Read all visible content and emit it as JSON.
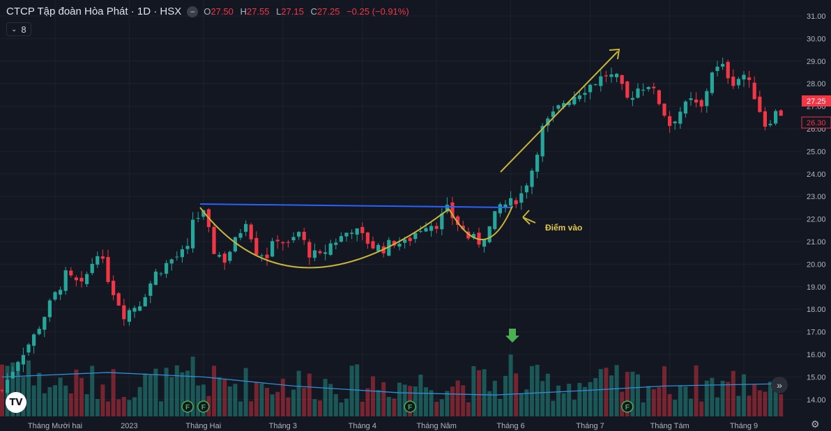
{
  "header": {
    "symbol": "CTCP Tập đoàn Hòa Phát · 1D · HSX",
    "minimize_icon": "minus-circle-icon",
    "ohlc": {
      "o_label": "O",
      "o": "27.50",
      "h_label": "H",
      "h": "27.55",
      "l_label": "L",
      "l": "27.15",
      "c_label": "C",
      "c": "27.25",
      "change": "−0.25 (−0.91%)"
    }
  },
  "indicator_badge": {
    "count": "8",
    "icon": "chevron-down-icon"
  },
  "logo": {
    "text": "TV",
    "icon": "tradingview-logo-icon"
  },
  "scroll_button_icon": "double-chevron-right-icon",
  "settings_icon": "gear-icon",
  "colors": {
    "up": "#26a69a",
    "down": "#f23645",
    "background": "#131722",
    "pattern": "#c8b43a",
    "resistance": "#2962ff",
    "ma": "#2f8fd8"
  },
  "chart_data": {
    "type": "candlestick",
    "y_axis": {
      "ticks": [
        "14.00",
        "15.00",
        "16.00",
        "17.00",
        "18.00",
        "19.00",
        "20.00",
        "21.00",
        "22.00",
        "23.00",
        "24.00",
        "25.00",
        "26.00",
        "27.00",
        "28.00",
        "29.00",
        "30.00",
        "31.00"
      ],
      "range": [
        13.4,
        31.4
      ]
    },
    "x_axis": {
      "ticks": [
        "Tháng Mười hai",
        "2023",
        "Tháng Hai",
        "Tháng 3",
        "Tháng 4",
        "Tháng Năm",
        "Tháng 6",
        "Tháng 7",
        "Tháng Tám",
        "Tháng 9"
      ],
      "tick_index": [
        10,
        24,
        38,
        53,
        68,
        82,
        96,
        111,
        126,
        140
      ]
    },
    "price_labels": {
      "last": "27.25",
      "other": "26.30"
    },
    "anchors": [
      [
        0,
        14.4
      ],
      [
        3,
        15.8
      ],
      [
        6,
        16.8
      ],
      [
        9,
        18.2
      ],
      [
        12,
        19.5
      ],
      [
        15,
        19.0
      ],
      [
        18,
        20.6
      ],
      [
        21,
        18.8
      ],
      [
        23,
        17.8
      ],
      [
        26,
        18.3
      ],
      [
        29,
        19.6
      ],
      [
        32,
        20.2
      ],
      [
        35,
        20.6
      ],
      [
        36,
        22.0
      ],
      [
        38,
        22.2
      ],
      [
        40,
        20.6
      ],
      [
        42,
        20.2
      ],
      [
        44,
        21.0
      ],
      [
        46,
        22.0
      ],
      [
        48,
        20.6
      ],
      [
        50,
        20.4
      ],
      [
        52,
        21.2
      ],
      [
        54,
        20.8
      ],
      [
        56,
        21.4
      ],
      [
        58,
        20.5
      ],
      [
        60,
        20.3
      ],
      [
        62,
        20.9
      ],
      [
        64,
        21.2
      ],
      [
        66,
        21.6
      ],
      [
        68,
        21.2
      ],
      [
        70,
        20.8
      ],
      [
        72,
        20.7
      ],
      [
        74,
        21.0
      ],
      [
        76,
        20.9
      ],
      [
        78,
        21.4
      ],
      [
        80,
        21.8
      ],
      [
        82,
        21.8
      ],
      [
        84,
        22.4
      ],
      [
        86,
        21.8
      ],
      [
        88,
        21.2
      ],
      [
        90,
        21.0
      ],
      [
        92,
        21.6
      ],
      [
        94,
        22.6
      ],
      [
        96,
        22.7
      ],
      [
        98,
        23.1
      ],
      [
        100,
        24.2
      ],
      [
        102,
        26.0
      ],
      [
        104,
        26.6
      ],
      [
        106,
        27.2
      ],
      [
        108,
        27.5
      ],
      [
        110,
        27.8
      ],
      [
        112,
        28.1
      ],
      [
        114,
        28.4
      ],
      [
        116,
        28.2
      ],
      [
        118,
        27.3
      ],
      [
        120,
        27.8
      ],
      [
        122,
        28.0
      ],
      [
        124,
        27.2
      ],
      [
        126,
        26.2
      ],
      [
        128,
        26.8
      ],
      [
        130,
        27.2
      ],
      [
        132,
        26.9
      ],
      [
        134,
        28.6
      ],
      [
        136,
        28.7
      ],
      [
        138,
        28.1
      ],
      [
        140,
        28.4
      ],
      [
        142,
        27.5
      ],
      [
        144,
        26.2
      ],
      [
        146,
        26.7
      ]
    ],
    "annotations": {
      "entry_label": "Điểm vào",
      "fundamental_markers": [
        {
          "label": "F",
          "index": 35
        },
        {
          "label": "F",
          "index": 38
        },
        {
          "label": "F",
          "index": 77
        },
        {
          "label": "F",
          "index": 118
        }
      ]
    },
    "moving_average": [
      [
        0,
        15.0
      ],
      [
        20,
        15.2
      ],
      [
        38,
        15.0
      ],
      [
        55,
        14.6
      ],
      [
        75,
        14.3
      ],
      [
        93,
        14.2
      ],
      [
        110,
        14.4
      ],
      [
        125,
        14.6
      ],
      [
        147,
        14.7
      ]
    ]
  }
}
